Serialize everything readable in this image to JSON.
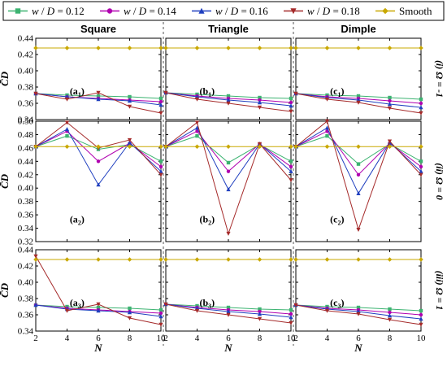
{
  "legend": {
    "entries": [
      {
        "label": "w / D = 0.12",
        "color": "#3cb371",
        "marker": "square"
      },
      {
        "label": "w / D = 0.14",
        "color": "#b000b0",
        "marker": "circle"
      },
      {
        "label": "w / D = 0.16",
        "color": "#1f3fbf",
        "marker": "triangle-up"
      },
      {
        "label": "w / D = 0.18",
        "color": "#a52a2a",
        "marker": "triangle-down"
      },
      {
        "label": "Smooth",
        "color": "#c9a800",
        "marker": "diamond"
      }
    ]
  },
  "columns": [
    "Square",
    "Triangle",
    "Dimple"
  ],
  "rows": [
    "(i) Ω = -1",
    "(ii) Ω = 0",
    "(iii) Ω = 1"
  ],
  "xlabel": "N",
  "ylabel": "C̄D",
  "chart_data": [
    {
      "type": "line",
      "panel": "(a1)",
      "row": 0,
      "col": 0,
      "x": [
        2,
        4,
        6,
        8,
        10
      ],
      "xlim": [
        2,
        10
      ],
      "ylim": [
        0.34,
        0.44
      ],
      "yticks": [
        "0.34",
        "0.36",
        "0.38",
        "0.40",
        "0.42",
        "0.44"
      ],
      "xticks": [
        "2",
        "4",
        "6",
        "8",
        "10"
      ],
      "series": [
        {
          "name": "w / D = 0.12",
          "values": [
            0.372,
            0.37,
            0.369,
            0.368,
            0.366
          ]
        },
        {
          "name": "w / D = 0.14",
          "values": [
            0.372,
            0.368,
            0.366,
            0.364,
            0.362
          ]
        },
        {
          "name": "w / D = 0.16",
          "values": [
            0.372,
            0.368,
            0.365,
            0.363,
            0.358
          ]
        },
        {
          "name": "w / D = 0.18",
          "values": [
            0.372,
            0.365,
            0.373,
            0.356,
            0.348
          ]
        },
        {
          "name": "Smooth",
          "values": [
            0.428,
            0.428,
            0.428,
            0.428,
            0.428
          ]
        }
      ]
    },
    {
      "type": "line",
      "panel": "(b1)",
      "row": 0,
      "col": 1,
      "x": [
        2,
        4,
        6,
        8,
        10
      ],
      "xlim": [
        2,
        10
      ],
      "ylim": [
        0.34,
        0.44
      ],
      "yticks": [
        "0.34",
        "0.36",
        "0.38",
        "0.40",
        "0.42",
        "0.44"
      ],
      "xticks": [
        "2",
        "4",
        "6",
        "8",
        "10"
      ],
      "series": [
        {
          "name": "w / D = 0.12",
          "values": [
            0.373,
            0.371,
            0.369,
            0.367,
            0.366
          ]
        },
        {
          "name": "w / D = 0.14",
          "values": [
            0.373,
            0.369,
            0.366,
            0.364,
            0.361
          ]
        },
        {
          "name": "w / D = 0.16",
          "values": [
            0.373,
            0.368,
            0.364,
            0.361,
            0.357
          ]
        },
        {
          "name": "w / D = 0.18",
          "values": [
            0.373,
            0.365,
            0.36,
            0.355,
            0.35
          ]
        },
        {
          "name": "Smooth",
          "values": [
            0.428,
            0.428,
            0.428,
            0.428,
            0.428
          ]
        }
      ]
    },
    {
      "type": "line",
      "panel": "(c1)",
      "row": 0,
      "col": 2,
      "x": [
        2,
        4,
        6,
        8,
        10
      ],
      "xlim": [
        2,
        10
      ],
      "ylim": [
        0.34,
        0.44
      ],
      "yticks": [
        "0.34",
        "0.36",
        "0.38",
        "0.40",
        "0.42",
        "0.44"
      ],
      "xticks": [
        "2",
        "4",
        "6",
        "8",
        "10"
      ],
      "series": [
        {
          "name": "w / D = 0.12",
          "values": [
            0.372,
            0.37,
            0.369,
            0.367,
            0.365
          ]
        },
        {
          "name": "w / D = 0.14",
          "values": [
            0.372,
            0.368,
            0.366,
            0.363,
            0.36
          ]
        },
        {
          "name": "w / D = 0.16",
          "values": [
            0.372,
            0.367,
            0.364,
            0.359,
            0.355
          ]
        },
        {
          "name": "w / D = 0.18",
          "values": [
            0.372,
            0.365,
            0.361,
            0.354,
            0.348
          ]
        },
        {
          "name": "Smooth",
          "values": [
            0.428,
            0.428,
            0.428,
            0.428,
            0.428
          ]
        }
      ]
    },
    {
      "type": "line",
      "panel": "(a2)",
      "row": 1,
      "col": 0,
      "x": [
        2,
        4,
        6,
        8,
        10
      ],
      "xlim": [
        2,
        10
      ],
      "ylim": [
        0.32,
        0.5
      ],
      "yticks": [
        "0.32",
        "0.34",
        "0.36",
        "0.38",
        "0.40",
        "0.42",
        "0.44",
        "0.46",
        "0.48",
        "0.50"
      ],
      "xticks": [
        "2",
        "4",
        "6",
        "8",
        "10"
      ],
      "series": [
        {
          "name": "w / D = 0.12",
          "values": [
            0.462,
            0.478,
            0.458,
            0.465,
            0.44
          ]
        },
        {
          "name": "w / D = 0.14",
          "values": [
            0.462,
            0.485,
            0.44,
            0.467,
            0.432
          ]
        },
        {
          "name": "w / D = 0.16",
          "values": [
            0.462,
            0.488,
            0.405,
            0.468,
            0.425
          ]
        },
        {
          "name": "w / D = 0.18",
          "values": [
            0.462,
            0.498,
            0.46,
            0.472,
            0.42
          ]
        },
        {
          "name": "Smooth",
          "values": [
            0.462,
            0.462,
            0.462,
            0.462,
            0.462
          ]
        }
      ]
    },
    {
      "type": "line",
      "panel": "(b2)",
      "row": 1,
      "col": 1,
      "x": [
        2,
        4,
        6,
        8,
        10
      ],
      "xlim": [
        2,
        10
      ],
      "ylim": [
        0.32,
        0.5
      ],
      "yticks": [
        "0.32",
        "0.34",
        "0.36",
        "0.38",
        "0.40",
        "0.42",
        "0.44",
        "0.46",
        "0.48",
        "0.50"
      ],
      "xticks": [
        "2",
        "4",
        "6",
        "8",
        "10"
      ],
      "series": [
        {
          "name": "w / D = 0.12",
          "values": [
            0.462,
            0.478,
            0.438,
            0.465,
            0.44
          ]
        },
        {
          "name": "w / D = 0.14",
          "values": [
            0.462,
            0.485,
            0.425,
            0.466,
            0.432
          ]
        },
        {
          "name": "w / D = 0.16",
          "values": [
            0.462,
            0.49,
            0.398,
            0.466,
            0.425
          ]
        },
        {
          "name": "w / D = 0.18",
          "values": [
            0.462,
            0.498,
            0.332,
            0.466,
            0.412
          ]
        },
        {
          "name": "Smooth",
          "values": [
            0.462,
            0.462,
            0.462,
            0.462,
            0.462
          ]
        }
      ]
    },
    {
      "type": "line",
      "panel": "(c2)",
      "row": 1,
      "col": 2,
      "x": [
        2,
        4,
        6,
        8,
        10
      ],
      "xlim": [
        2,
        10
      ],
      "ylim": [
        0.32,
        0.5
      ],
      "yticks": [
        "0.32",
        "0.34",
        "0.36",
        "0.38",
        "0.40",
        "0.42",
        "0.44",
        "0.46",
        "0.48",
        "0.50"
      ],
      "xticks": [
        "2",
        "4",
        "6",
        "8",
        "10"
      ],
      "series": [
        {
          "name": "w / D = 0.12",
          "values": [
            0.462,
            0.478,
            0.436,
            0.466,
            0.44
          ]
        },
        {
          "name": "w / D = 0.14",
          "values": [
            0.462,
            0.485,
            0.42,
            0.467,
            0.432
          ]
        },
        {
          "name": "w / D = 0.16",
          "values": [
            0.462,
            0.49,
            0.392,
            0.468,
            0.425
          ]
        },
        {
          "name": "w / D = 0.18",
          "values": [
            0.462,
            0.5,
            0.338,
            0.47,
            0.42
          ]
        },
        {
          "name": "Smooth",
          "values": [
            0.462,
            0.462,
            0.462,
            0.462,
            0.462
          ]
        }
      ]
    },
    {
      "type": "line",
      "panel": "(a3)",
      "row": 2,
      "col": 0,
      "x": [
        2,
        4,
        6,
        8,
        10
      ],
      "xlim": [
        2,
        10
      ],
      "ylim": [
        0.34,
        0.44
      ],
      "yticks": [
        "0.34",
        "0.36",
        "0.38",
        "0.40",
        "0.42",
        "0.44"
      ],
      "xticks": [
        "2",
        "4",
        "6",
        "8",
        "10"
      ],
      "series": [
        {
          "name": "w / D = 0.12",
          "values": [
            0.372,
            0.37,
            0.369,
            0.368,
            0.366
          ]
        },
        {
          "name": "w / D = 0.14",
          "values": [
            0.372,
            0.368,
            0.366,
            0.364,
            0.362
          ]
        },
        {
          "name": "w / D = 0.16",
          "values": [
            0.372,
            0.367,
            0.365,
            0.363,
            0.358
          ]
        },
        {
          "name": "w / D = 0.18",
          "values": [
            0.432,
            0.365,
            0.373,
            0.356,
            0.348
          ]
        },
        {
          "name": "Smooth",
          "values": [
            0.428,
            0.428,
            0.428,
            0.428,
            0.428
          ]
        }
      ]
    },
    {
      "type": "line",
      "panel": "(b3)",
      "row": 2,
      "col": 1,
      "x": [
        2,
        4,
        6,
        8,
        10
      ],
      "xlim": [
        2,
        10
      ],
      "ylim": [
        0.34,
        0.44
      ],
      "yticks": [
        "0.34",
        "0.36",
        "0.38",
        "0.40",
        "0.42",
        "0.44"
      ],
      "xticks": [
        "2",
        "4",
        "6",
        "8",
        "10"
      ],
      "series": [
        {
          "name": "w / D = 0.12",
          "values": [
            0.373,
            0.371,
            0.369,
            0.367,
            0.366
          ]
        },
        {
          "name": "w / D = 0.14",
          "values": [
            0.373,
            0.369,
            0.366,
            0.364,
            0.361
          ]
        },
        {
          "name": "w / D = 0.16",
          "values": [
            0.373,
            0.368,
            0.364,
            0.361,
            0.357
          ]
        },
        {
          "name": "w / D = 0.18",
          "values": [
            0.373,
            0.365,
            0.36,
            0.355,
            0.35
          ]
        },
        {
          "name": "Smooth",
          "values": [
            0.428,
            0.428,
            0.428,
            0.428,
            0.428
          ]
        }
      ]
    },
    {
      "type": "line",
      "panel": "(c3)",
      "row": 2,
      "col": 2,
      "x": [
        2,
        4,
        6,
        8,
        10
      ],
      "xlim": [
        2,
        10
      ],
      "ylim": [
        0.34,
        0.44
      ],
      "yticks": [
        "0.34",
        "0.36",
        "0.38",
        "0.40",
        "0.42",
        "0.44"
      ],
      "xticks": [
        "2",
        "4",
        "6",
        "8",
        "10"
      ],
      "series": [
        {
          "name": "w / D = 0.12",
          "values": [
            0.372,
            0.37,
            0.369,
            0.367,
            0.365
          ]
        },
        {
          "name": "w / D = 0.14",
          "values": [
            0.372,
            0.368,
            0.366,
            0.363,
            0.36
          ]
        },
        {
          "name": "w / D = 0.16",
          "values": [
            0.372,
            0.367,
            0.364,
            0.359,
            0.355
          ]
        },
        {
          "name": "w / D = 0.18",
          "values": [
            0.372,
            0.365,
            0.361,
            0.354,
            0.348
          ]
        },
        {
          "name": "Smooth",
          "values": [
            0.428,
            0.428,
            0.428,
            0.428,
            0.428
          ]
        }
      ]
    }
  ]
}
